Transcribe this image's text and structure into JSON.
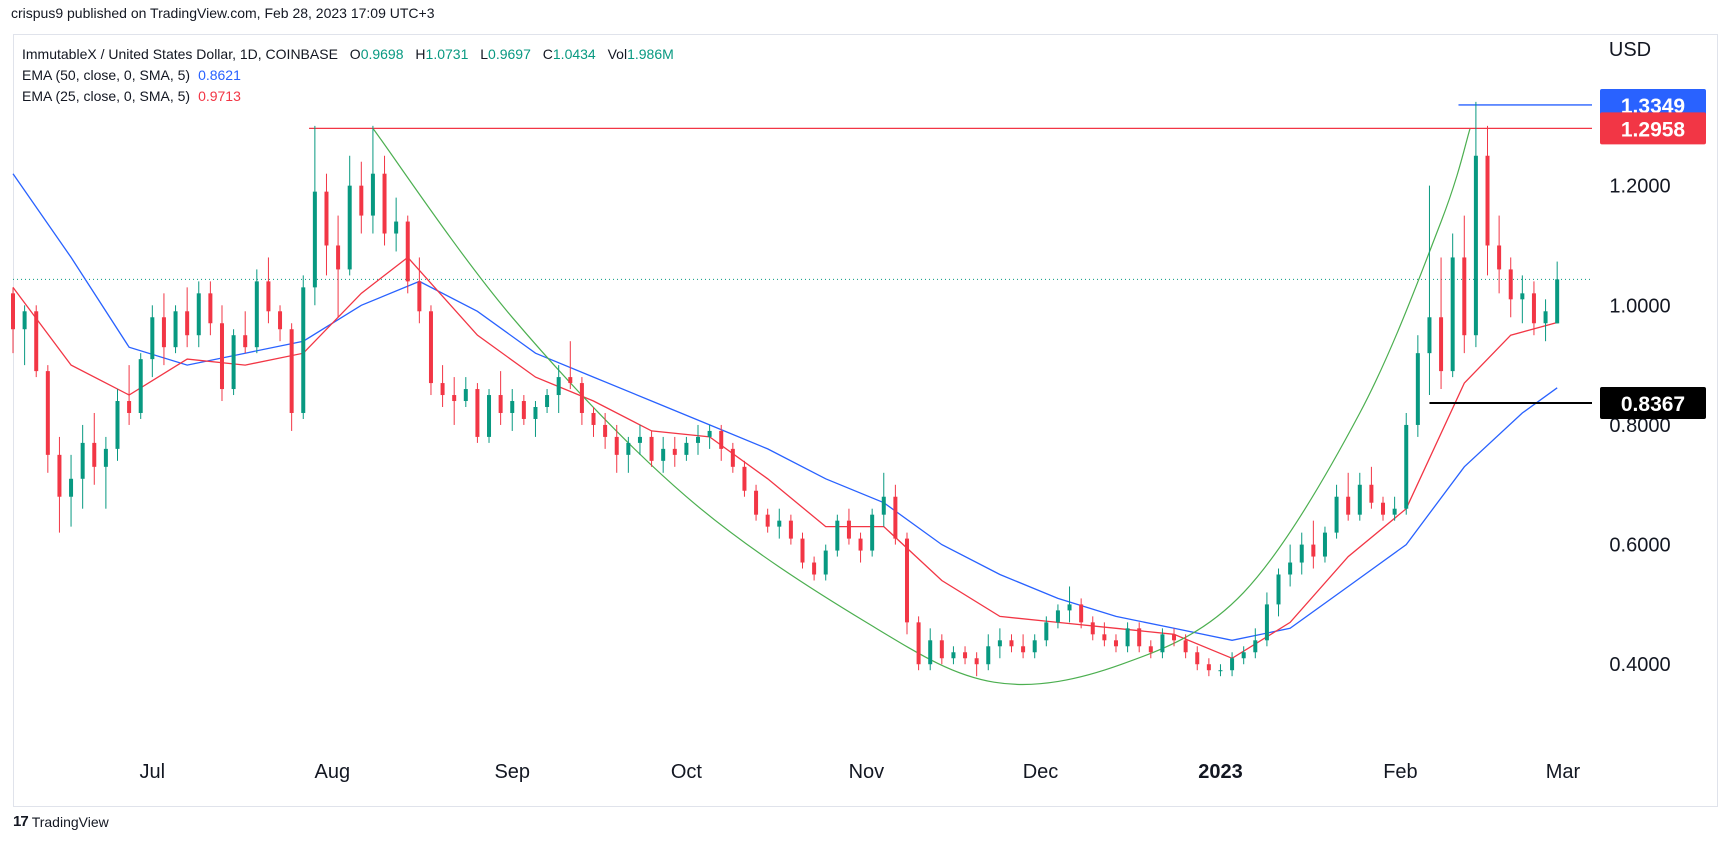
{
  "header": {
    "publish_line": "crispus9 published on TradingView.com, Feb 28, 2023 17:09 UTC+3"
  },
  "legend": {
    "symbol": "ImmutableX / United States Dollar, 1D, COINBASE",
    "open_label": "O",
    "open": "0.9698",
    "high_label": "H",
    "high": "1.0731",
    "low_label": "L",
    "low": "0.9697",
    "close_label": "C",
    "close": "1.0434",
    "vol_label": "Vol",
    "vol": "1.986M",
    "ema50_label": "EMA (50, close, 0, SMA, 5)",
    "ema50_value": "0.8621",
    "ema25_label": "EMA (25, close, 0, SMA, 5)",
    "ema25_value": "0.9713"
  },
  "footer": {
    "logo_mark": "17",
    "brand": "TradingView"
  },
  "chart_data": {
    "type": "candlestick",
    "currency": "USD",
    "y_ticks": [
      "1.2000",
      "1.0000",
      "0.8000",
      "0.6000",
      "0.4000"
    ],
    "ylim": [
      0.27,
      1.39
    ],
    "x_ticks": [
      "Jul",
      "Aug",
      "Sep",
      "Oct",
      "Nov",
      "Dec",
      "2023",
      "Feb",
      "Mar"
    ],
    "x_range": [
      "2022-06-07",
      "2023-03-06"
    ],
    "price_labels": [
      {
        "value": "1.3349",
        "color": "#2962ff",
        "text_color": "#ffffff"
      },
      {
        "value": "1.2958",
        "color": "#f23645",
        "text_color": "#ffffff"
      },
      {
        "value": "0.8367",
        "color": "#000000",
        "text_color": "#ffffff"
      }
    ],
    "last_close": 1.0434,
    "horizontal_lines": [
      {
        "name": "resistance",
        "value": 1.2958,
        "from": "2022-07-28",
        "to": "2023-03-06",
        "color": "#f23645"
      },
      {
        "name": "peak",
        "value": 1.3349,
        "from": "2023-02-11",
        "to": "2023-03-06",
        "color": "#2962ff"
      },
      {
        "name": "support",
        "value": 0.8367,
        "from": "2023-02-06",
        "to": "2023-03-06",
        "color": "#000000"
      }
    ],
    "cup_pattern": {
      "color": "#4caf50",
      "points": [
        [
          "2022-08-08",
          1.2958
        ],
        [
          "2022-09-01",
          0.98
        ],
        [
          "2022-10-01",
          0.68
        ],
        [
          "2022-11-01",
          0.47
        ],
        [
          "2022-11-23",
          0.37
        ],
        [
          "2022-12-15",
          0.4
        ],
        [
          "2023-01-05",
          0.52
        ],
        [
          "2023-01-25",
          0.82
        ],
        [
          "2023-02-08",
          1.14
        ],
        [
          "2023-02-13",
          1.2958
        ]
      ]
    },
    "candle_colors": {
      "up": "#089981",
      "down": "#f23645"
    },
    "candles": [
      [
        "2022-06-07",
        1.02,
        1.03,
        0.92,
        0.96
      ],
      [
        "2022-06-09",
        0.96,
        1.0,
        0.9,
        0.99
      ],
      [
        "2022-06-11",
        0.99,
        1.0,
        0.88,
        0.89
      ],
      [
        "2022-06-13",
        0.89,
        0.9,
        0.72,
        0.75
      ],
      [
        "2022-06-15",
        0.75,
        0.78,
        0.62,
        0.68
      ],
      [
        "2022-06-17",
        0.68,
        0.75,
        0.63,
        0.71
      ],
      [
        "2022-06-19",
        0.71,
        0.8,
        0.66,
        0.77
      ],
      [
        "2022-06-21",
        0.77,
        0.82,
        0.7,
        0.73
      ],
      [
        "2022-06-23",
        0.73,
        0.78,
        0.66,
        0.76
      ],
      [
        "2022-06-25",
        0.76,
        0.86,
        0.74,
        0.84
      ],
      [
        "2022-06-27",
        0.84,
        0.9,
        0.8,
        0.82
      ],
      [
        "2022-06-29",
        0.82,
        0.92,
        0.81,
        0.91
      ],
      [
        "2022-07-01",
        0.91,
        1.0,
        0.88,
        0.98
      ],
      [
        "2022-07-03",
        0.98,
        1.02,
        0.9,
        0.93
      ],
      [
        "2022-07-05",
        0.93,
        1.0,
        0.92,
        0.99
      ],
      [
        "2022-07-07",
        0.99,
        1.03,
        0.93,
        0.95
      ],
      [
        "2022-07-09",
        0.95,
        1.04,
        0.93,
        1.02
      ],
      [
        "2022-07-11",
        1.02,
        1.04,
        0.95,
        0.97
      ],
      [
        "2022-07-13",
        0.97,
        1.0,
        0.84,
        0.86
      ],
      [
        "2022-07-15",
        0.86,
        0.96,
        0.85,
        0.95
      ],
      [
        "2022-07-17",
        0.95,
        0.99,
        0.92,
        0.93
      ],
      [
        "2022-07-19",
        0.93,
        1.06,
        0.92,
        1.04
      ],
      [
        "2022-07-21",
        1.04,
        1.08,
        0.97,
        0.99
      ],
      [
        "2022-07-23",
        0.99,
        1.0,
        0.94,
        0.96
      ],
      [
        "2022-07-25",
        0.96,
        0.97,
        0.79,
        0.82
      ],
      [
        "2022-07-27",
        0.82,
        1.05,
        0.81,
        1.03
      ],
      [
        "2022-07-29",
        1.03,
        1.3,
        1.0,
        1.19
      ],
      [
        "2022-07-31",
        1.19,
        1.22,
        1.05,
        1.1
      ],
      [
        "2022-08-02",
        1.1,
        1.15,
        0.98,
        1.06
      ],
      [
        "2022-08-04",
        1.06,
        1.25,
        1.05,
        1.2
      ],
      [
        "2022-08-06",
        1.2,
        1.24,
        1.12,
        1.15
      ],
      [
        "2022-08-08",
        1.15,
        1.3,
        1.12,
        1.22
      ],
      [
        "2022-08-10",
        1.22,
        1.25,
        1.1,
        1.12
      ],
      [
        "2022-08-12",
        1.12,
        1.18,
        1.09,
        1.14
      ],
      [
        "2022-08-14",
        1.14,
        1.15,
        1.02,
        1.04
      ],
      [
        "2022-08-16",
        1.04,
        1.08,
        0.97,
        0.99
      ],
      [
        "2022-08-18",
        0.99,
        1.0,
        0.85,
        0.87
      ],
      [
        "2022-08-20",
        0.87,
        0.9,
        0.83,
        0.85
      ],
      [
        "2022-08-22",
        0.85,
        0.88,
        0.8,
        0.84
      ],
      [
        "2022-08-24",
        0.84,
        0.88,
        0.83,
        0.86
      ],
      [
        "2022-08-26",
        0.86,
        0.87,
        0.77,
        0.78
      ],
      [
        "2022-08-28",
        0.78,
        0.86,
        0.77,
        0.85
      ],
      [
        "2022-08-30",
        0.85,
        0.89,
        0.8,
        0.82
      ],
      [
        "2022-09-01",
        0.82,
        0.86,
        0.79,
        0.84
      ],
      [
        "2022-09-03",
        0.84,
        0.85,
        0.8,
        0.81
      ],
      [
        "2022-09-05",
        0.81,
        0.84,
        0.78,
        0.83
      ],
      [
        "2022-09-07",
        0.83,
        0.86,
        0.82,
        0.85
      ],
      [
        "2022-09-09",
        0.85,
        0.9,
        0.82,
        0.88
      ],
      [
        "2022-09-11",
        0.88,
        0.94,
        0.86,
        0.87
      ],
      [
        "2022-09-13",
        0.87,
        0.88,
        0.8,
        0.82
      ],
      [
        "2022-09-15",
        0.82,
        0.83,
        0.78,
        0.8
      ],
      [
        "2022-09-17",
        0.8,
        0.82,
        0.76,
        0.78
      ],
      [
        "2022-09-19",
        0.78,
        0.8,
        0.72,
        0.75
      ],
      [
        "2022-09-21",
        0.75,
        0.78,
        0.72,
        0.77
      ],
      [
        "2022-09-23",
        0.77,
        0.8,
        0.75,
        0.78
      ],
      [
        "2022-09-25",
        0.78,
        0.79,
        0.73,
        0.74
      ],
      [
        "2022-09-27",
        0.74,
        0.78,
        0.72,
        0.76
      ],
      [
        "2022-09-29",
        0.76,
        0.78,
        0.73,
        0.75
      ],
      [
        "2022-10-01",
        0.75,
        0.78,
        0.74,
        0.77
      ],
      [
        "2022-10-03",
        0.77,
        0.8,
        0.75,
        0.78
      ],
      [
        "2022-10-05",
        0.78,
        0.8,
        0.76,
        0.79
      ],
      [
        "2022-10-07",
        0.79,
        0.8,
        0.74,
        0.76
      ],
      [
        "2022-10-09",
        0.76,
        0.77,
        0.72,
        0.73
      ],
      [
        "2022-10-11",
        0.73,
        0.74,
        0.68,
        0.69
      ],
      [
        "2022-10-13",
        0.69,
        0.7,
        0.64,
        0.65
      ],
      [
        "2022-10-15",
        0.65,
        0.66,
        0.62,
        0.63
      ],
      [
        "2022-10-17",
        0.63,
        0.66,
        0.61,
        0.64
      ],
      [
        "2022-10-19",
        0.64,
        0.65,
        0.6,
        0.61
      ],
      [
        "2022-10-21",
        0.61,
        0.62,
        0.56,
        0.57
      ],
      [
        "2022-10-23",
        0.57,
        0.58,
        0.54,
        0.55
      ],
      [
        "2022-10-25",
        0.55,
        0.6,
        0.54,
        0.59
      ],
      [
        "2022-10-27",
        0.59,
        0.65,
        0.58,
        0.64
      ],
      [
        "2022-10-29",
        0.64,
        0.66,
        0.6,
        0.61
      ],
      [
        "2022-10-31",
        0.61,
        0.62,
        0.57,
        0.59
      ],
      [
        "2022-11-02",
        0.59,
        0.66,
        0.58,
        0.65
      ],
      [
        "2022-11-04",
        0.65,
        0.72,
        0.63,
        0.68
      ],
      [
        "2022-11-06",
        0.68,
        0.7,
        0.6,
        0.61
      ],
      [
        "2022-11-08",
        0.61,
        0.62,
        0.45,
        0.47
      ],
      [
        "2022-11-10",
        0.47,
        0.48,
        0.39,
        0.4
      ],
      [
        "2022-11-12",
        0.4,
        0.46,
        0.39,
        0.44
      ],
      [
        "2022-11-14",
        0.44,
        0.45,
        0.4,
        0.41
      ],
      [
        "2022-11-16",
        0.41,
        0.43,
        0.4,
        0.42
      ],
      [
        "2022-11-18",
        0.42,
        0.43,
        0.4,
        0.41
      ],
      [
        "2022-11-20",
        0.41,
        0.42,
        0.38,
        0.4
      ],
      [
        "2022-11-22",
        0.4,
        0.45,
        0.39,
        0.43
      ],
      [
        "2022-11-24",
        0.43,
        0.46,
        0.41,
        0.44
      ],
      [
        "2022-11-26",
        0.44,
        0.45,
        0.42,
        0.43
      ],
      [
        "2022-11-28",
        0.43,
        0.45,
        0.41,
        0.42
      ],
      [
        "2022-11-30",
        0.42,
        0.45,
        0.41,
        0.44
      ],
      [
        "2022-12-02",
        0.44,
        0.48,
        0.43,
        0.47
      ],
      [
        "2022-12-04",
        0.47,
        0.5,
        0.46,
        0.49
      ],
      [
        "2022-12-06",
        0.49,
        0.53,
        0.47,
        0.5
      ],
      [
        "2022-12-08",
        0.5,
        0.51,
        0.46,
        0.47
      ],
      [
        "2022-12-10",
        0.47,
        0.48,
        0.44,
        0.45
      ],
      [
        "2022-12-12",
        0.45,
        0.47,
        0.43,
        0.44
      ],
      [
        "2022-12-14",
        0.44,
        0.45,
        0.42,
        0.43
      ],
      [
        "2022-12-16",
        0.43,
        0.47,
        0.42,
        0.46
      ],
      [
        "2022-12-18",
        0.46,
        0.47,
        0.42,
        0.43
      ],
      [
        "2022-12-20",
        0.43,
        0.44,
        0.41,
        0.42
      ],
      [
        "2022-12-22",
        0.42,
        0.46,
        0.41,
        0.45
      ],
      [
        "2022-12-24",
        0.45,
        0.46,
        0.43,
        0.44
      ],
      [
        "2022-12-26",
        0.44,
        0.45,
        0.41,
        0.42
      ],
      [
        "2022-12-28",
        0.42,
        0.43,
        0.39,
        0.4
      ],
      [
        "2022-12-30",
        0.4,
        0.41,
        0.38,
        0.39
      ],
      [
        "2023-01-01",
        0.39,
        0.4,
        0.38,
        0.39
      ],
      [
        "2023-01-03",
        0.39,
        0.42,
        0.38,
        0.41
      ],
      [
        "2023-01-05",
        0.41,
        0.43,
        0.4,
        0.42
      ],
      [
        "2023-01-07",
        0.42,
        0.46,
        0.41,
        0.44
      ],
      [
        "2023-01-09",
        0.44,
        0.52,
        0.43,
        0.5
      ],
      [
        "2023-01-11",
        0.5,
        0.56,
        0.48,
        0.55
      ],
      [
        "2023-01-13",
        0.55,
        0.6,
        0.53,
        0.57
      ],
      [
        "2023-01-15",
        0.57,
        0.62,
        0.55,
        0.6
      ],
      [
        "2023-01-17",
        0.6,
        0.64,
        0.56,
        0.58
      ],
      [
        "2023-01-19",
        0.58,
        0.63,
        0.57,
        0.62
      ],
      [
        "2023-01-21",
        0.62,
        0.7,
        0.61,
        0.68
      ],
      [
        "2023-01-23",
        0.68,
        0.72,
        0.64,
        0.65
      ],
      [
        "2023-01-25",
        0.65,
        0.72,
        0.64,
        0.7
      ],
      [
        "2023-01-27",
        0.7,
        0.73,
        0.66,
        0.67
      ],
      [
        "2023-01-29",
        0.67,
        0.68,
        0.64,
        0.65
      ],
      [
        "2023-01-31",
        0.65,
        0.68,
        0.64,
        0.66
      ],
      [
        "2023-02-02",
        0.66,
        0.82,
        0.65,
        0.8
      ],
      [
        "2023-02-04",
        0.8,
        0.95,
        0.78,
        0.92
      ],
      [
        "2023-02-06",
        0.92,
        1.2,
        0.85,
        0.98
      ],
      [
        "2023-02-08",
        0.98,
        1.08,
        0.86,
        0.89
      ],
      [
        "2023-02-10",
        0.89,
        1.12,
        0.88,
        1.08
      ],
      [
        "2023-02-12",
        1.08,
        1.15,
        0.92,
        0.95
      ],
      [
        "2023-02-14",
        0.95,
        1.34,
        0.93,
        1.25
      ],
      [
        "2023-02-16",
        1.25,
        1.3,
        1.05,
        1.1
      ],
      [
        "2023-02-18",
        1.1,
        1.15,
        1.02,
        1.06
      ],
      [
        "2023-02-20",
        1.06,
        1.08,
        0.98,
        1.01
      ],
      [
        "2023-02-22",
        1.01,
        1.05,
        0.97,
        1.02
      ],
      [
        "2023-02-24",
        1.02,
        1.04,
        0.95,
        0.97
      ],
      [
        "2023-02-26",
        0.97,
        1.01,
        0.94,
        0.99
      ],
      [
        "2023-02-28",
        0.9698,
        1.0731,
        0.9697,
        1.0434
      ]
    ],
    "series": [
      {
        "name": "EMA (50, close, 0, SMA, 5)",
        "color": "#2962ff",
        "points": [
          [
            "2022-06-07",
            1.22
          ],
          [
            "2022-06-17",
            1.08
          ],
          [
            "2022-06-27",
            0.93
          ],
          [
            "2022-07-07",
            0.9
          ],
          [
            "2022-07-17",
            0.92
          ],
          [
            "2022-07-27",
            0.94
          ],
          [
            "2022-08-06",
            1.0
          ],
          [
            "2022-08-16",
            1.04
          ],
          [
            "2022-08-26",
            0.99
          ],
          [
            "2022-09-05",
            0.92
          ],
          [
            "2022-09-15",
            0.88
          ],
          [
            "2022-09-25",
            0.84
          ],
          [
            "2022-10-05",
            0.8
          ],
          [
            "2022-10-15",
            0.76
          ],
          [
            "2022-10-25",
            0.71
          ],
          [
            "2022-11-04",
            0.67
          ],
          [
            "2022-11-14",
            0.6
          ],
          [
            "2022-11-24",
            0.55
          ],
          [
            "2022-12-04",
            0.51
          ],
          [
            "2022-12-14",
            0.48
          ],
          [
            "2022-12-24",
            0.46
          ],
          [
            "2023-01-03",
            0.44
          ],
          [
            "2023-01-13",
            0.46
          ],
          [
            "2023-01-23",
            0.53
          ],
          [
            "2023-02-02",
            0.6
          ],
          [
            "2023-02-12",
            0.73
          ],
          [
            "2023-02-22",
            0.82
          ],
          [
            "2023-02-28",
            0.8621
          ]
        ]
      },
      {
        "name": "EMA (25, close, 0, SMA, 5)",
        "color": "#f23645",
        "points": [
          [
            "2022-06-07",
            1.03
          ],
          [
            "2022-06-17",
            0.9
          ],
          [
            "2022-06-27",
            0.85
          ],
          [
            "2022-07-07",
            0.91
          ],
          [
            "2022-07-17",
            0.9
          ],
          [
            "2022-07-27",
            0.92
          ],
          [
            "2022-08-06",
            1.02
          ],
          [
            "2022-08-14",
            1.08
          ],
          [
            "2022-08-26",
            0.95
          ],
          [
            "2022-09-05",
            0.88
          ],
          [
            "2022-09-15",
            0.84
          ],
          [
            "2022-09-25",
            0.79
          ],
          [
            "2022-10-05",
            0.78
          ],
          [
            "2022-10-15",
            0.71
          ],
          [
            "2022-10-25",
            0.63
          ],
          [
            "2022-11-04",
            0.63
          ],
          [
            "2022-11-14",
            0.54
          ],
          [
            "2022-11-24",
            0.48
          ],
          [
            "2022-12-04",
            0.47
          ],
          [
            "2022-12-14",
            0.46
          ],
          [
            "2022-12-24",
            0.45
          ],
          [
            "2023-01-03",
            0.41
          ],
          [
            "2023-01-13",
            0.47
          ],
          [
            "2023-01-23",
            0.58
          ],
          [
            "2023-02-02",
            0.66
          ],
          [
            "2023-02-12",
            0.87
          ],
          [
            "2023-02-20",
            0.95
          ],
          [
            "2023-02-28",
            0.9713
          ]
        ]
      }
    ]
  }
}
